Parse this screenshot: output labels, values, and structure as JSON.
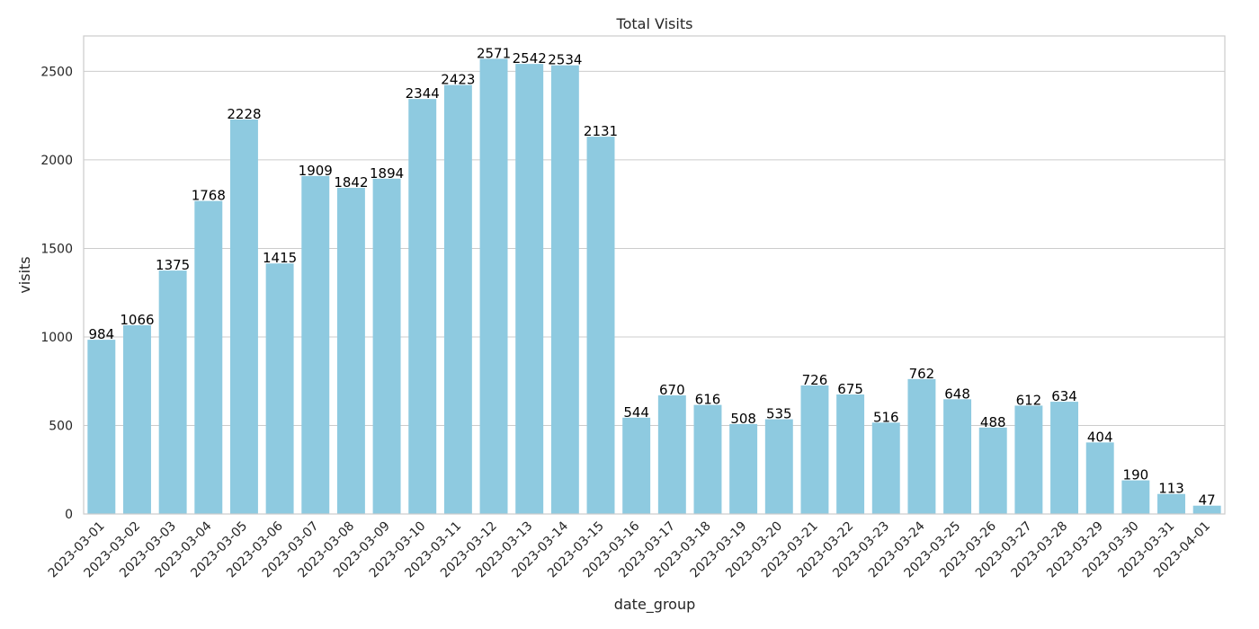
{
  "colors": {
    "bar": "#8ecae0",
    "grid": "#cccccc",
    "text": "#262626",
    "label": "#000000"
  },
  "chart_data": {
    "type": "bar",
    "title": "Total Visits",
    "xlabel": "date_group",
    "ylabel": "visits",
    "ylim": [
      0,
      2700
    ],
    "yticks": [
      0,
      500,
      1000,
      1500,
      2000,
      2500
    ],
    "grid": "horizontal",
    "categories": [
      "2023-03-01",
      "2023-03-02",
      "2023-03-03",
      "2023-03-04",
      "2023-03-05",
      "2023-03-06",
      "2023-03-07",
      "2023-03-08",
      "2023-03-09",
      "2023-03-10",
      "2023-03-11",
      "2023-03-12",
      "2023-03-13",
      "2023-03-14",
      "2023-03-15",
      "2023-03-16",
      "2023-03-17",
      "2023-03-18",
      "2023-03-19",
      "2023-03-20",
      "2023-03-21",
      "2023-03-22",
      "2023-03-23",
      "2023-03-24",
      "2023-03-25",
      "2023-03-26",
      "2023-03-27",
      "2023-03-28",
      "2023-03-29",
      "2023-03-30",
      "2023-03-31",
      "2023-04-01"
    ],
    "values": [
      984,
      1066,
      1375,
      1768,
      2228,
      1415,
      1909,
      1842,
      1894,
      2344,
      2423,
      2571,
      2542,
      2534,
      2131,
      544,
      670,
      616,
      508,
      535,
      726,
      675,
      516,
      762,
      648,
      488,
      612,
      634,
      404,
      190,
      113,
      47
    ]
  }
}
